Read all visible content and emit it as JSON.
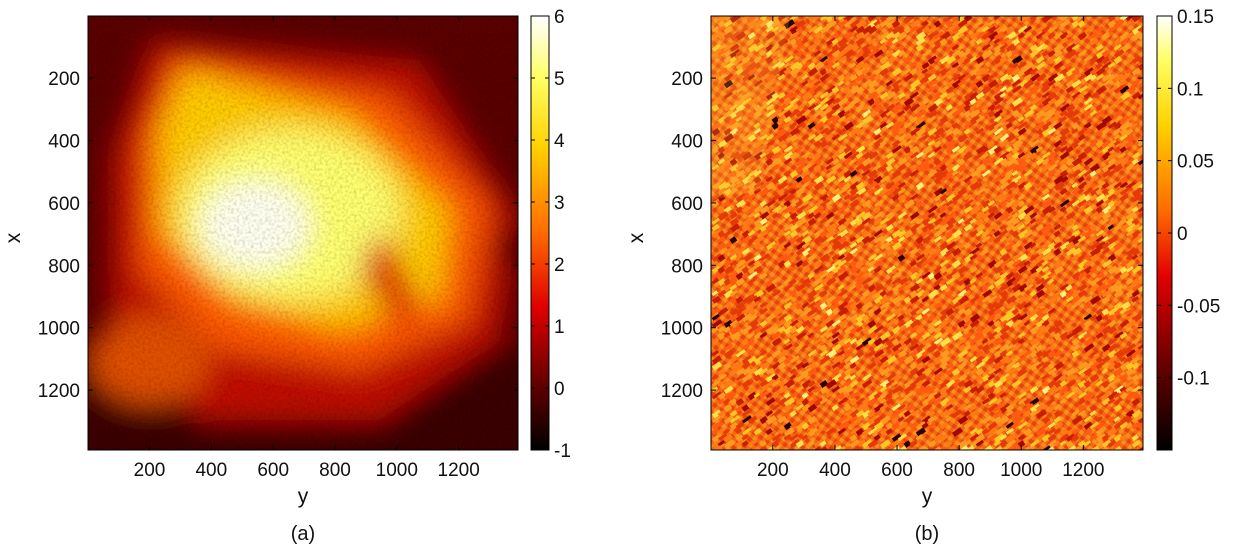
{
  "chart_data": [
    {
      "type": "heatmap",
      "caption": "(a)",
      "xlabel": "y",
      "ylabel": "x",
      "x_ticks": [
        "200",
        "400",
        "600",
        "800",
        "1000",
        "1200"
      ],
      "y_ticks": [
        "200",
        "400",
        "600",
        "800",
        "1000",
        "1200"
      ],
      "x_range": [
        1,
        1392
      ],
      "y_range": [
        1,
        1392
      ],
      "y_reversed": true,
      "colormap": "hot",
      "colorbar": {
        "range": [
          -1,
          6
        ],
        "ticks": [
          "6",
          "5",
          "4",
          "3",
          "2",
          "1",
          "0",
          "-1"
        ],
        "tick_values": [
          6,
          5,
          4,
          3,
          2,
          1,
          0,
          -1
        ]
      }
    },
    {
      "type": "heatmap",
      "caption": "(b)",
      "xlabel": "y",
      "ylabel": "x",
      "x_ticks": [
        "200",
        "400",
        "600",
        "800",
        "1000",
        "1200"
      ],
      "y_ticks": [
        "200",
        "400",
        "600",
        "800",
        "1000",
        "1200"
      ],
      "x_range": [
        1,
        1392
      ],
      "y_range": [
        1,
        1392
      ],
      "y_reversed": true,
      "colormap": "hot",
      "colorbar": {
        "range": [
          -0.15,
          0.15
        ],
        "ticks": [
          "0.15",
          "0.1",
          "0.05",
          "0",
          "-0.05",
          "-0.1"
        ],
        "tick_values": [
          0.15,
          0.1,
          0.05,
          0,
          -0.05,
          -0.1
        ]
      }
    }
  ],
  "colors": {
    "hot_stops": [
      "#000000",
      "#7a0000",
      "#e00000",
      "#ff6a00",
      "#ffd200",
      "#ffff66",
      "#ffffff"
    ]
  }
}
